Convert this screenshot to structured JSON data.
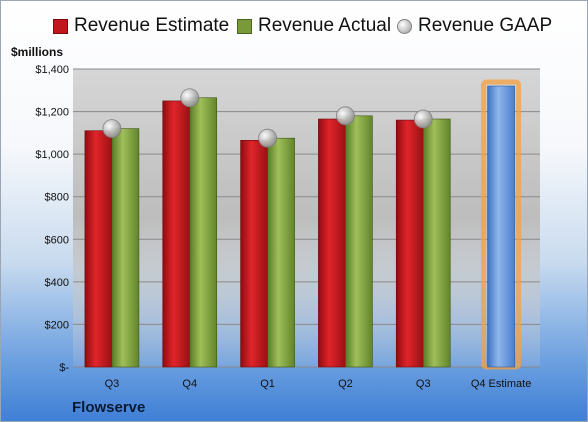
{
  "chart_data": {
    "type": "bar",
    "ylabel": "$millions",
    "ylim": [
      0,
      1400
    ],
    "yticks": [
      {
        "value": 0,
        "label": "$-"
      },
      {
        "value": 200,
        "label": "$200"
      },
      {
        "value": 400,
        "label": "$400"
      },
      {
        "value": 600,
        "label": "$600"
      },
      {
        "value": 800,
        "label": "$800"
      },
      {
        "value": 1000,
        "label": "$1,000"
      },
      {
        "value": 1200,
        "label": "$1,200"
      },
      {
        "value": 1400,
        "label": "$1,400"
      }
    ],
    "categories": [
      "Q3",
      "Q4",
      "Q1",
      "Q2",
      "Q3",
      "Q4 Estimate"
    ],
    "series": [
      {
        "name": "Revenue Estimate",
        "kind": "bar",
        "color": "#c0161c",
        "values": [
          1110,
          1250,
          1065,
          1165,
          1160,
          null
        ]
      },
      {
        "name": "Revenue Actual",
        "kind": "bar",
        "color": "#7a9a3a",
        "values": [
          1120,
          1265,
          1075,
          1180,
          1165,
          null
        ]
      },
      {
        "name": "Revenue GAAP",
        "kind": "marker",
        "color": "#b0b0b0",
        "values": [
          1120,
          1265,
          1075,
          1180,
          1165,
          null
        ]
      }
    ],
    "estimate_bar": {
      "category_index": 5,
      "value": 1320,
      "color": "#5a8fd6",
      "highlight": "#f5a040"
    },
    "grid": true,
    "legend_position": "top"
  },
  "company": "Flowserve"
}
